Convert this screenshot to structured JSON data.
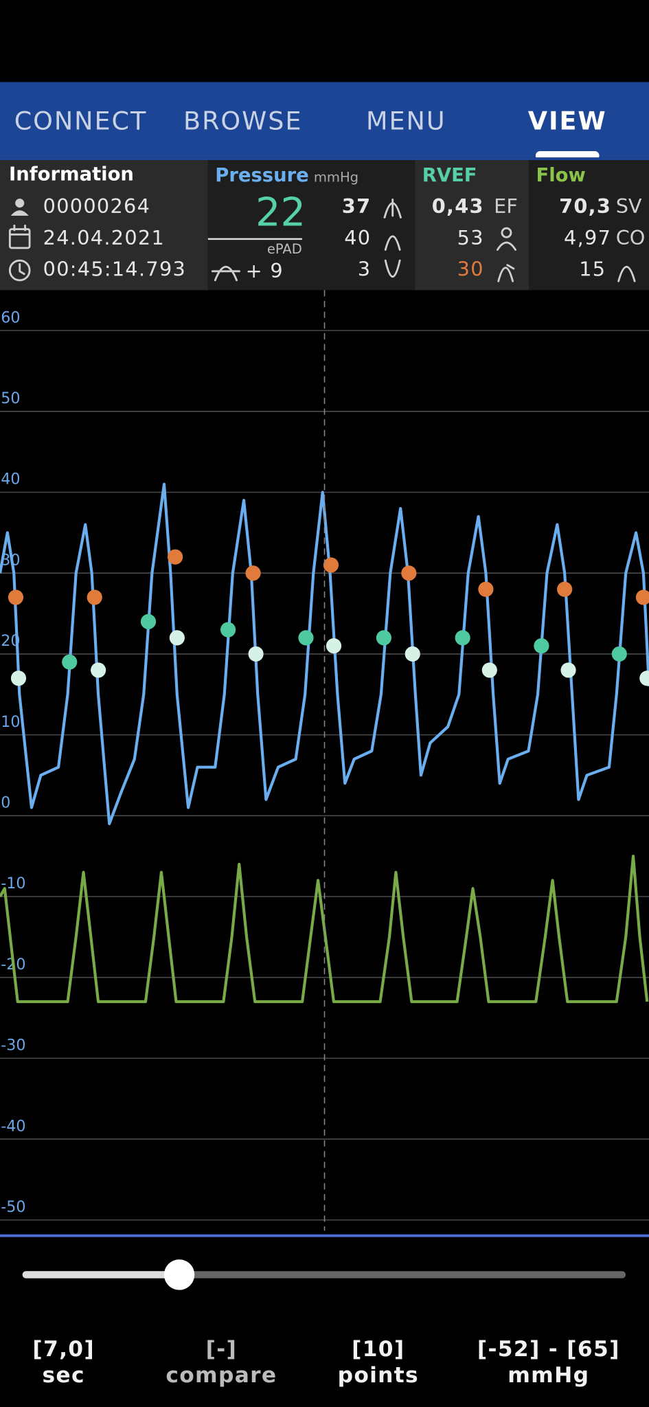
{
  "nav": {
    "tabs": [
      "CONNECT",
      "BROWSE",
      "MENU",
      "VIEW"
    ],
    "active": 3
  },
  "info": {
    "title": "Information",
    "patient": "00000264",
    "date": "24.04.2021",
    "time": "00:45:14.793"
  },
  "pressure": {
    "title": "Pressure",
    "unit": "mmHg",
    "value": 22,
    "label": "ePAD",
    "delta": "+ 9",
    "rows": [
      37,
      40,
      3
    ]
  },
  "rvef": {
    "title": "RVEF",
    "ef": "0,43",
    "ef_unit": "EF",
    "rows": [
      53,
      30
    ]
  },
  "flow": {
    "title": "Flow",
    "sv": "70,3",
    "sv_unit": "SV",
    "co": "4,97",
    "co_unit": "CO",
    "rows": [
      15
    ]
  },
  "plot": {
    "xlim": [
      0,
      7
    ],
    "ylim": [
      -52,
      65
    ],
    "yticks": [
      60,
      50,
      40,
      30,
      20,
      10,
      0,
      -10,
      -20,
      -30,
      -40,
      -50
    ],
    "grid": true,
    "series": [
      {
        "color": "#6aaef0",
        "x": [
          0,
          0.08,
          0.15,
          0.21,
          0.34,
          0.44,
          0.63,
          0.73,
          0.82,
          0.92,
          0.99,
          1.06,
          1.18,
          1.31,
          1.45,
          1.55,
          1.64,
          1.77,
          1.84,
          1.91,
          2.03,
          2.13,
          2.32,
          2.42,
          2.51,
          2.63,
          2.71,
          2.78,
          2.87,
          3.0,
          3.19,
          3.29,
          3.38,
          3.48,
          3.56,
          3.64,
          3.72,
          3.82,
          4.01,
          4.11,
          4.21,
          4.32,
          4.4,
          4.48,
          4.54,
          4.64,
          4.83,
          4.95,
          5.05,
          5.16,
          5.24,
          5.32,
          5.39,
          5.48,
          5.7,
          5.8,
          5.9,
          6.01,
          6.09,
          6.17,
          6.24,
          6.33,
          6.57,
          6.65,
          6.75,
          6.86,
          6.94,
          7.0
        ],
        "values": [
          30,
          35,
          30,
          15,
          1,
          5,
          6,
          15,
          30,
          36,
          30,
          15,
          -1,
          3,
          7,
          15,
          30,
          41,
          30,
          15,
          1,
          6,
          6,
          15,
          30,
          39,
          30,
          15,
          2,
          6,
          7,
          15,
          30,
          40,
          30,
          15,
          4,
          7,
          8,
          15,
          30,
          38,
          30,
          15,
          5,
          9,
          11,
          15,
          30,
          37,
          30,
          15,
          4,
          7,
          8,
          15,
          30,
          36,
          30,
          15,
          2,
          5,
          6,
          15,
          30,
          35,
          30,
          16
        ]
      },
      {
        "color": "#78ab48",
        "x": [
          0,
          0.05,
          0.12,
          0.19,
          0.73,
          0.82,
          0.9,
          0.98,
          1.06,
          1.57,
          1.66,
          1.74,
          1.82,
          1.9,
          2.41,
          2.5,
          2.58,
          2.66,
          2.75,
          3.26,
          3.35,
          3.43,
          3.51,
          3.6,
          4.1,
          4.2,
          4.27,
          4.35,
          4.44,
          4.93,
          5.03,
          5.1,
          5.18,
          5.27,
          5.78,
          5.88,
          5.96,
          6.03,
          6.12,
          6.65,
          6.75,
          6.83,
          6.9,
          6.98
        ],
        "values": [
          -10,
          -9,
          -16,
          -23,
          -23,
          -15,
          -7,
          -15,
          -23,
          -23,
          -15,
          -7,
          -15,
          -23,
          -23,
          -15,
          -6,
          -15,
          -23,
          -23,
          -15,
          -8,
          -15,
          -23,
          -23,
          -15,
          -7,
          -15,
          -23,
          -23,
          -15,
          -9,
          -15,
          -23,
          -23,
          -15,
          -8,
          -15,
          -23,
          -23,
          -15,
          -5,
          -15,
          -23
        ]
      }
    ],
    "markers": [
      {
        "color": "#e07b3c",
        "x": [
          0.17,
          1.02,
          1.89,
          2.73,
          3.57,
          4.41,
          5.24,
          6.09,
          6.94
        ],
        "values": [
          27,
          27,
          32,
          30,
          31,
          30,
          28,
          28,
          27
        ]
      },
      {
        "color": "#4ec9a0",
        "x": [
          0.75,
          1.6,
          2.46,
          3.3,
          4.14,
          4.99,
          5.84,
          6.68
        ],
        "values": [
          19,
          24,
          23,
          22,
          22,
          22,
          21,
          20
        ]
      },
      {
        "color": "#d6f2e6",
        "x": [
          0.2,
          1.06,
          1.91,
          2.76,
          3.6,
          4.45,
          5.28,
          6.13,
          6.98
        ],
        "values": [
          17,
          18,
          22,
          20,
          21,
          20,
          18,
          18,
          17
        ]
      }
    ]
  },
  "footer": [
    {
      "value": "[7,0]",
      "label": "sec"
    },
    {
      "value": "[-]",
      "label": "compare"
    },
    {
      "value": "[10]",
      "label": "points"
    },
    {
      "value": "[-52] - [65]",
      "label": "mmHg"
    }
  ]
}
